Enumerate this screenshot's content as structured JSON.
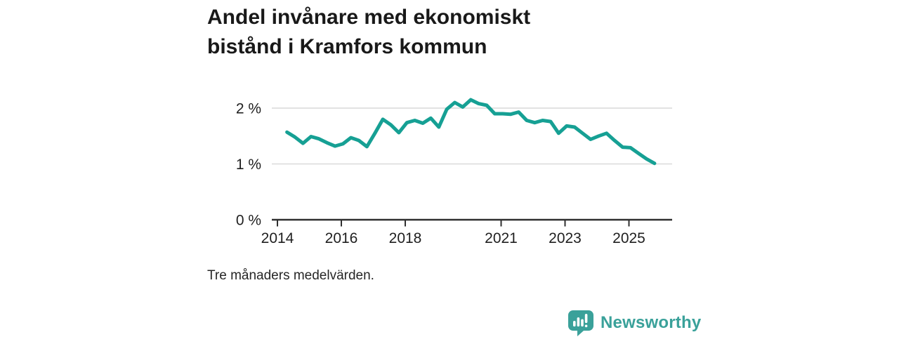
{
  "header": {
    "title_line1": "Andel invånare med ekonomiskt",
    "title_line2": "bistånd i Kramfors kommun"
  },
  "footnote": "Tre månaders medelvärden.",
  "branding": {
    "name": "Newsworthy",
    "logo_icon": "bar-chart-speech-bubble-icon",
    "color": "#3aa19a"
  },
  "chart_data": {
    "type": "line",
    "title": "Andel invånare med ekonomiskt bistånd i Kramfors kommun",
    "subtitle_note": "Tre månaders medelvärden.",
    "series_name": "Andel invånare med ekonomiskt bistånd",
    "unit": "%",
    "line_color": "#16a094",
    "grid": "horizontal",
    "legend": "none",
    "x": [
      2014.3,
      2014.55,
      2014.8,
      2015.05,
      2015.3,
      2015.55,
      2015.8,
      2016.05,
      2016.3,
      2016.55,
      2016.8,
      2017.05,
      2017.3,
      2017.55,
      2017.8,
      2018.05,
      2018.3,
      2018.55,
      2018.8,
      2019.05,
      2019.3,
      2019.55,
      2019.8,
      2020.05,
      2020.3,
      2020.55,
      2020.8,
      2021.05,
      2021.3,
      2021.55,
      2021.8,
      2022.05,
      2022.3,
      2022.55,
      2022.8,
      2023.05,
      2023.3,
      2023.55,
      2023.8,
      2024.05,
      2024.3,
      2024.55,
      2024.8,
      2025.05,
      2025.3,
      2025.55,
      2025.8
    ],
    "values": [
      1.57,
      1.48,
      1.37,
      1.49,
      1.45,
      1.38,
      1.32,
      1.36,
      1.47,
      1.42,
      1.31,
      1.55,
      1.8,
      1.7,
      1.56,
      1.74,
      1.78,
      1.73,
      1.82,
      1.66,
      1.98,
      2.1,
      2.02,
      2.15,
      2.08,
      2.05,
      1.9,
      1.9,
      1.89,
      1.93,
      1.78,
      1.74,
      1.78,
      1.76,
      1.55,
      1.68,
      1.66,
      1.55,
      1.44,
      1.5,
      1.55,
      1.42,
      1.3,
      1.29,
      1.19,
      1.09,
      1.01
    ],
    "x_tick_years": [
      2014,
      2016,
      2018,
      2021,
      2023,
      2025
    ],
    "x_tick_labels": [
      "2014",
      "2016",
      "2018",
      "2021",
      "2023",
      "2025"
    ],
    "y_ticks": [
      0,
      1,
      2
    ],
    "y_tick_labels": [
      "0 %",
      "1 %",
      "2 %"
    ],
    "ylim": [
      0,
      2.35
    ],
    "xlim": [
      2013.82,
      2026.35
    ]
  }
}
